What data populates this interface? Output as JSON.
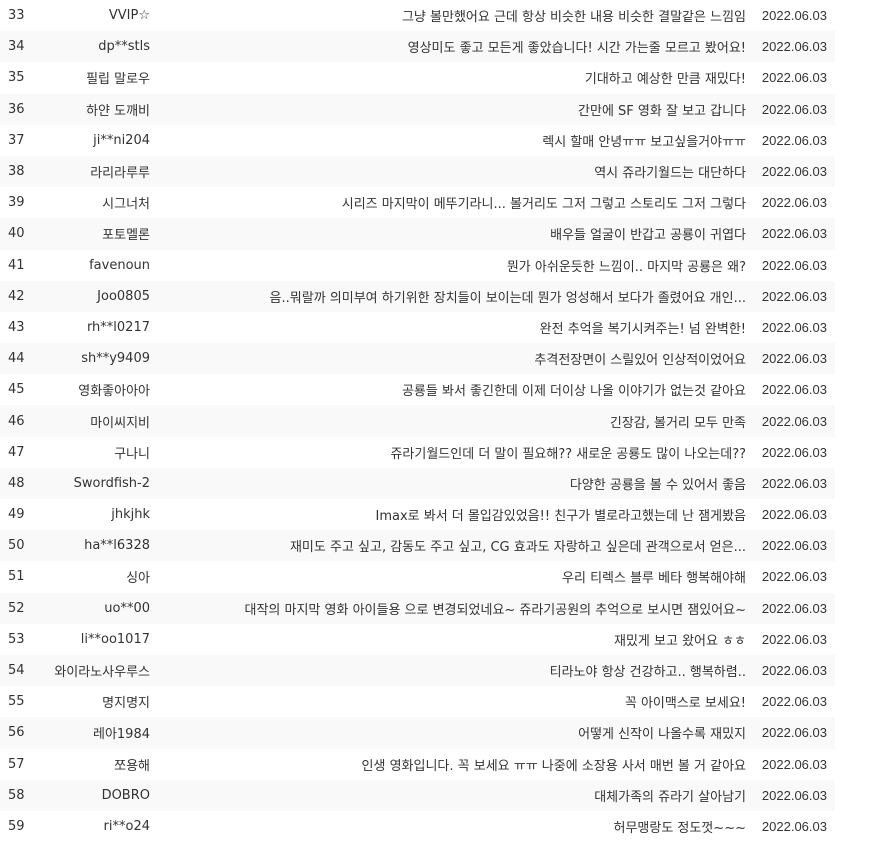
{
  "rows": [
    {
      "num": "33",
      "user": "VVIP☆",
      "comment": "그냥 볼만했어요 근데 항상 비슷한 내용 비슷한 결말같은 느낌임",
      "date": "2022.06.03"
    },
    {
      "num": "34",
      "user": "dp**stls",
      "comment": "영상미도 좋고 모든게 좋았습니다! 시간 가는줄 모르고 봤어요!",
      "date": "2022.06.03"
    },
    {
      "num": "35",
      "user": "필립 말로우",
      "comment": "기대하고 예상한 만큼 재밌다!",
      "date": "2022.06.03"
    },
    {
      "num": "36",
      "user": "하얀 도깨비",
      "comment": "간만에 SF 영화 잘 보고 갑니다",
      "date": "2022.06.03"
    },
    {
      "num": "37",
      "user": "ji**ni204",
      "comment": "렉시 할매 안녕ㅠㅠ 보고싶을거야ㅠㅠ",
      "date": "2022.06.03"
    },
    {
      "num": "38",
      "user": "라리라루루",
      "comment": "역시 쥬라기월드는 대단하다",
      "date": "2022.06.03"
    },
    {
      "num": "39",
      "user": "시그너처",
      "comment": "시리즈 마지막이 메뚜기라니... 볼거리도 그저 그렇고 스토리도 그저 그렇다",
      "date": "2022.06.03"
    },
    {
      "num": "40",
      "user": "포토멜론",
      "comment": "배우들 얼굴이 반갑고 공룡이 귀엽다",
      "date": "2022.06.03"
    },
    {
      "num": "41",
      "user": "favenoun",
      "comment": "뭔가 아쉬운듯한 느낌이.. 마지막 공룡은 왜?",
      "date": "2022.06.03"
    },
    {
      "num": "42",
      "user": "Joo0805",
      "comment": "음..뭐랄까 의미부여 하기위한 장치들이 보이는데 뭔가 엉성해서 보다가 졸렸어요 개인...",
      "date": "2022.06.03"
    },
    {
      "num": "43",
      "user": "rh**l0217",
      "comment": "완전 추억을 복기시켜주는! 넘 완벽한!",
      "date": "2022.06.03"
    },
    {
      "num": "44",
      "user": "sh**y9409",
      "comment": "추격전장면이 스릴있어 인상적이었어요",
      "date": "2022.06.03"
    },
    {
      "num": "45",
      "user": "영화좋아아아",
      "comment": "공룡들 봐서 좋긴한데 이제 더이상 나올 이야기가 없는것 같아요",
      "date": "2022.06.03"
    },
    {
      "num": "46",
      "user": "마이씨지비",
      "comment": "긴장감, 볼거리 모두 만족",
      "date": "2022.06.03"
    },
    {
      "num": "47",
      "user": "구나니",
      "comment": "쥬라기월드인데 더 말이 필요해?? 새로운 공룡도 많이 나오는데??",
      "date": "2022.06.03"
    },
    {
      "num": "48",
      "user": "Swordfish-2",
      "comment": "다양한 공룡을 볼 수 있어서 좋음",
      "date": "2022.06.03"
    },
    {
      "num": "49",
      "user": "jhkjhk",
      "comment": "Imax로 봐서 더 몰입감있었음!! 친구가 별로라고했는데 난 잼게봤음",
      "date": "2022.06.03"
    },
    {
      "num": "50",
      "user": "ha**l6328",
      "comment": "재미도 주고 싶고, 감동도 주고 싶고, CG 효과도 자랑하고 싶은데 관객으로서 얻은...",
      "date": "2022.06.03"
    },
    {
      "num": "51",
      "user": "싱아",
      "comment": "우리 티렉스 블루 베타 행복해야해",
      "date": "2022.06.03"
    },
    {
      "num": "52",
      "user": "uo**00",
      "comment": "대작의 마지막 영화 아이들용 으로 변경되었네요~ 쥬라기공원의 추억으로 보시면 잼있어요~",
      "date": "2022.06.03"
    },
    {
      "num": "53",
      "user": "li**oo1017",
      "comment": "재밌게 보고 왔어요 ㅎㅎ",
      "date": "2022.06.03"
    },
    {
      "num": "54",
      "user": "와이라노사우루스",
      "comment": "티라노야 항상 건강하고.. 행복하렴..",
      "date": "2022.06.03"
    },
    {
      "num": "55",
      "user": "명지명지",
      "comment": "꼭 아이맥스로 보세요!",
      "date": "2022.06.03"
    },
    {
      "num": "56",
      "user": "레아1984",
      "comment": "어떻게 신작이 나올수록 재밌지",
      "date": "2022.06.03"
    },
    {
      "num": "57",
      "user": "쪼용해",
      "comment": "인생 영화입니다. 꼭 보세요 ㅠㅠ 나중에 소장용 사서 매번 볼 거 같아요",
      "date": "2022.06.03"
    },
    {
      "num": "58",
      "user": "DOBRO",
      "comment": "대체가족의 쥬라기 살아남기",
      "date": "2022.06.03"
    },
    {
      "num": "59",
      "user": "ri**o24",
      "comment": "허무맹랑도 정도껏~~~",
      "date": "2022.06.03"
    }
  ]
}
